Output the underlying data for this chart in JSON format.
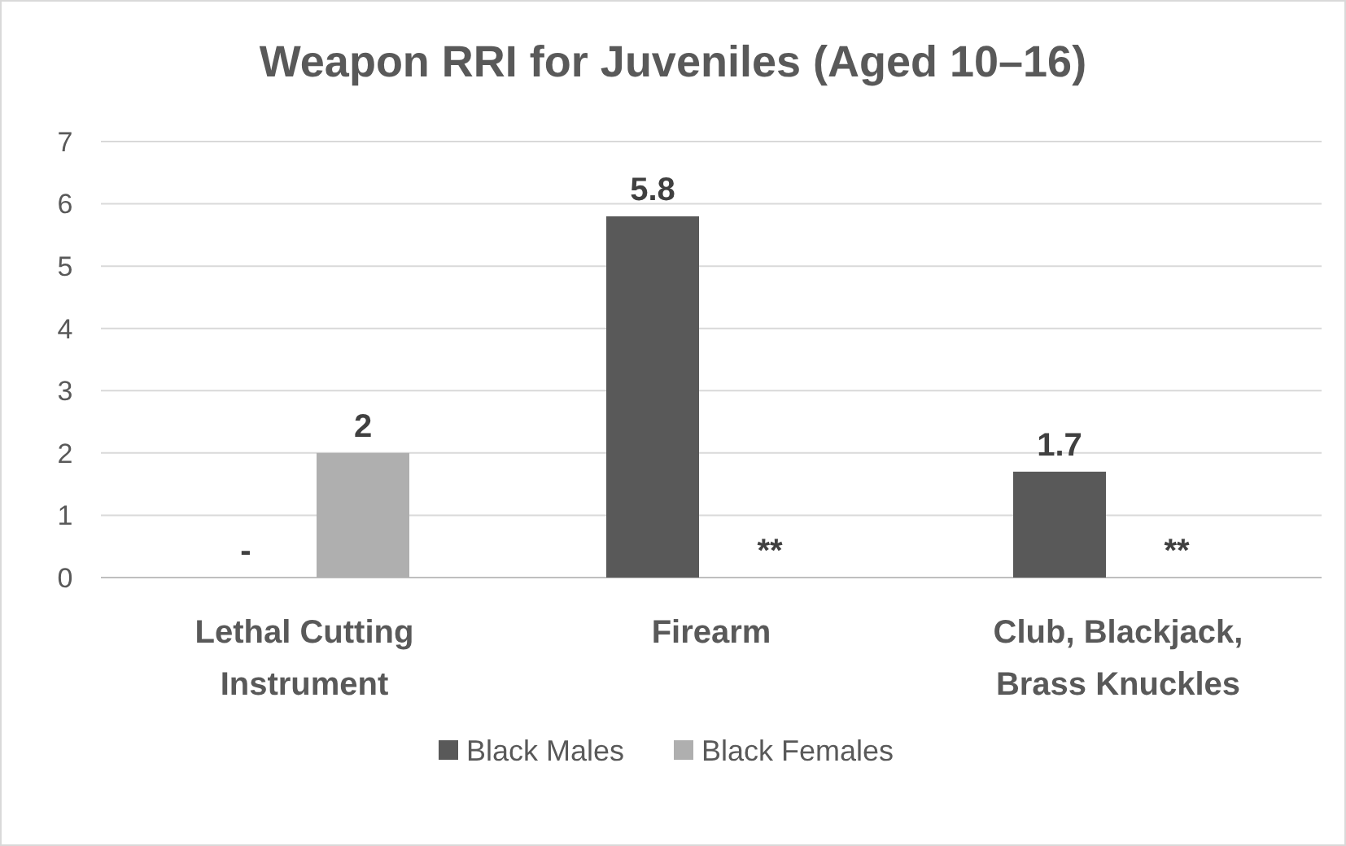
{
  "chart_data": {
    "type": "bar",
    "title": "Weapon RRI for Juveniles (Aged 10–16)",
    "categories": [
      "Lethal Cutting Instrument",
      "Firearm",
      "Club, Blackjack, Brass Knuckles"
    ],
    "series": [
      {
        "name": "Black Males",
        "color": "#595959",
        "values": [
          null,
          5.8,
          1.7
        ],
        "value_labels": [
          "-",
          "5.8",
          "1.7"
        ]
      },
      {
        "name": "Black Females",
        "color": "#afafaf",
        "values": [
          2,
          null,
          null
        ],
        "value_labels": [
          "2",
          "**",
          "**"
        ]
      }
    ],
    "ylim": [
      0,
      7
    ],
    "yticks": [
      0,
      1,
      2,
      3,
      4,
      5,
      6,
      7
    ],
    "grid": "y",
    "legend": "bottom"
  }
}
